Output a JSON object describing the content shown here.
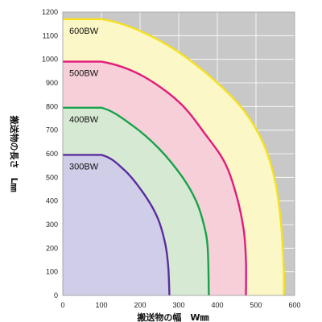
{
  "chart_data": {
    "type": "area",
    "title": "",
    "xlabel": "搬送物の幅　W㎜",
    "ylabel_main": "搬送物の長さ",
    "ylabel_unit": "L㎜",
    "xlim": [
      0,
      600
    ],
    "ylim": [
      0,
      1200
    ],
    "x_ticks": [
      "0",
      "100",
      "200",
      "300",
      "400",
      "500",
      "600"
    ],
    "y_ticks": [
      "0",
      "100",
      "200",
      "300",
      "400",
      "500",
      "600",
      "700",
      "800",
      "900",
      "1000",
      "1100",
      "1200"
    ],
    "grid": true,
    "background": "#c8c8c8",
    "series": [
      {
        "name": "600BW",
        "color": "#f5e11e",
        "fill": "#fbf7c6",
        "points": [
          [
            0,
            1170
          ],
          [
            100,
            1170
          ],
          [
            200,
            1120
          ],
          [
            300,
            1030
          ],
          [
            400,
            900
          ],
          [
            470,
            780
          ],
          [
            520,
            640
          ],
          [
            550,
            480
          ],
          [
            565,
            300
          ],
          [
            572,
            100
          ],
          [
            572,
            0
          ]
        ]
      },
      {
        "name": "500BW",
        "color": "#e31b7b",
        "fill": "#f6cfd9",
        "points": [
          [
            0,
            990
          ],
          [
            100,
            990
          ],
          [
            200,
            935
          ],
          [
            300,
            820
          ],
          [
            370,
            680
          ],
          [
            420,
            560
          ],
          [
            450,
            420
          ],
          [
            468,
            280
          ],
          [
            474,
            150
          ],
          [
            474,
            0
          ]
        ]
      },
      {
        "name": "400BW",
        "color": "#16a34a",
        "fill": "#d6ead3",
        "points": [
          [
            0,
            795
          ],
          [
            100,
            795
          ],
          [
            180,
            720
          ],
          [
            250,
            620
          ],
          [
            310,
            500
          ],
          [
            345,
            400
          ],
          [
            365,
            300
          ],
          [
            375,
            200
          ],
          [
            378,
            0
          ]
        ]
      },
      {
        "name": "300BW",
        "color": "#5b2ca0",
        "fill": "#cfcde8",
        "points": [
          [
            0,
            595
          ],
          [
            100,
            595
          ],
          [
            160,
            530
          ],
          [
            210,
            430
          ],
          [
            245,
            330
          ],
          [
            265,
            220
          ],
          [
            273,
            120
          ],
          [
            276,
            0
          ]
        ]
      }
    ]
  }
}
